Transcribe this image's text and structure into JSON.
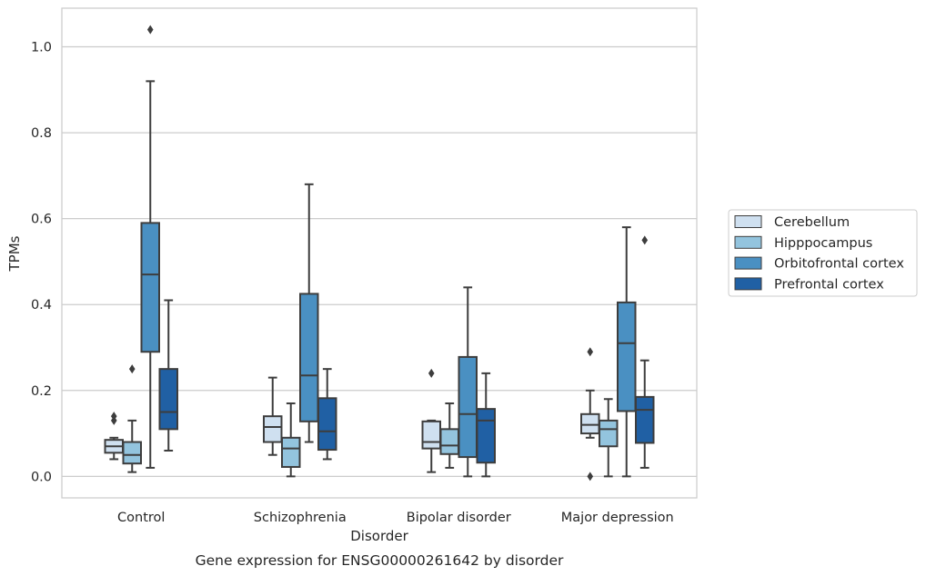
{
  "caption": "Gene expression for ENSG00000261642 by disorder",
  "chart_data": {
    "type": "box",
    "xlabel": "Disorder",
    "ylabel": "TPMs",
    "ylim": [
      -0.05,
      1.09
    ],
    "yticks": [
      0.0,
      0.2,
      0.4,
      0.6,
      0.8,
      1.0
    ],
    "ytick_labels": [
      "0.0",
      "0.2",
      "0.4",
      "0.6",
      "0.8",
      "1.0"
    ],
    "grid": "horizontal",
    "legend_position": "right",
    "categories": [
      "Control",
      "Schizophrenia",
      "Bipolar disorder",
      "Major depression"
    ],
    "series": [
      {
        "name": "Cerebellum",
        "color": "#cfe0f0",
        "boxes": [
          {
            "min": 0.04,
            "q1": 0.055,
            "median": 0.07,
            "q3": 0.085,
            "max": 0.09,
            "outliers": [
              0.13,
              0.14
            ]
          },
          {
            "min": 0.05,
            "q1": 0.08,
            "median": 0.115,
            "q3": 0.14,
            "max": 0.23,
            "outliers": []
          },
          {
            "min": 0.01,
            "q1": 0.065,
            "median": 0.08,
            "q3": 0.128,
            "max": 0.13,
            "outliers": [
              0.24
            ]
          },
          {
            "min": 0.09,
            "q1": 0.1,
            "median": 0.12,
            "q3": 0.145,
            "max": 0.2,
            "outliers": [
              0.29,
              0.0
            ]
          }
        ]
      },
      {
        "name": "Hipppocampus",
        "color": "#93c4de",
        "boxes": [
          {
            "min": 0.01,
            "q1": 0.03,
            "median": 0.05,
            "q3": 0.08,
            "max": 0.13,
            "outliers": [
              0.25
            ]
          },
          {
            "min": 0.0,
            "q1": 0.022,
            "median": 0.065,
            "q3": 0.09,
            "max": 0.17,
            "outliers": []
          },
          {
            "min": 0.02,
            "q1": 0.052,
            "median": 0.072,
            "q3": 0.11,
            "max": 0.17,
            "outliers": []
          },
          {
            "min": 0.0,
            "q1": 0.07,
            "median": 0.11,
            "q3": 0.13,
            "max": 0.18,
            "outliers": []
          }
        ]
      },
      {
        "name": "Orbitofrontal cortex",
        "color": "#4a90c2",
        "boxes": [
          {
            "min": 0.02,
            "q1": 0.29,
            "median": 0.47,
            "q3": 0.59,
            "max": 0.92,
            "outliers": [
              1.04
            ]
          },
          {
            "min": 0.08,
            "q1": 0.128,
            "median": 0.235,
            "q3": 0.425,
            "max": 0.68,
            "outliers": []
          },
          {
            "min": 0.0,
            "q1": 0.045,
            "median": 0.145,
            "q3": 0.278,
            "max": 0.44,
            "outliers": []
          },
          {
            "min": 0.0,
            "q1": 0.152,
            "median": 0.31,
            "q3": 0.405,
            "max": 0.58,
            "outliers": []
          }
        ]
      },
      {
        "name": "Prefrontal cortex",
        "color": "#2060a4",
        "boxes": [
          {
            "min": 0.06,
            "q1": 0.11,
            "median": 0.15,
            "q3": 0.25,
            "max": 0.41,
            "outliers": []
          },
          {
            "min": 0.04,
            "q1": 0.062,
            "median": 0.105,
            "q3": 0.182,
            "max": 0.25,
            "outliers": []
          },
          {
            "min": 0.0,
            "q1": 0.032,
            "median": 0.13,
            "q3": 0.157,
            "max": 0.24,
            "outliers": []
          },
          {
            "min": 0.02,
            "q1": 0.078,
            "median": 0.155,
            "q3": 0.185,
            "max": 0.27,
            "outliers": [
              0.55
            ]
          }
        ]
      }
    ]
  }
}
